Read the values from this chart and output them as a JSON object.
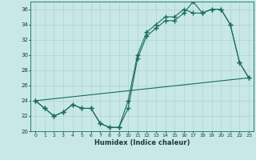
{
  "xlabel": "Humidex (Indice chaleur)",
  "bg_color": "#c8e8e8",
  "grid_color": "#b0d0d0",
  "line_color": "#1a6b5a",
  "xlim": [
    -0.5,
    23.5
  ],
  "ylim": [
    20,
    37
  ],
  "yticks": [
    20,
    22,
    24,
    26,
    28,
    30,
    32,
    34,
    36
  ],
  "xticks": [
    0,
    1,
    2,
    3,
    4,
    5,
    6,
    7,
    8,
    9,
    10,
    11,
    12,
    13,
    14,
    15,
    16,
    17,
    18,
    19,
    20,
    21,
    22,
    23
  ],
  "line1_x": [
    0,
    1,
    2,
    3,
    4,
    5,
    6,
    7,
    8,
    9,
    10,
    11,
    12,
    13,
    14,
    15,
    16,
    17,
    18,
    19,
    20,
    21,
    22,
    23
  ],
  "line1_y": [
    24.0,
    23.0,
    22.0,
    22.5,
    23.5,
    23.0,
    23.0,
    21.0,
    20.5,
    20.5,
    23.0,
    29.5,
    32.5,
    33.5,
    34.5,
    34.5,
    35.5,
    37.0,
    35.5,
    36.0,
    36.0,
    34.0,
    29.0,
    27.0
  ],
  "line2_x": [
    0,
    1,
    2,
    3,
    4,
    5,
    6,
    7,
    8,
    9,
    10,
    11,
    12,
    13,
    14,
    15,
    16,
    17,
    18,
    19,
    20,
    21,
    22,
    23
  ],
  "line2_y": [
    24.0,
    23.0,
    22.0,
    22.5,
    23.5,
    23.0,
    23.0,
    21.0,
    20.5,
    20.5,
    24.0,
    30.0,
    33.0,
    34.0,
    35.0,
    35.0,
    36.0,
    35.5,
    35.5,
    36.0,
    36.0,
    34.0,
    29.0,
    27.0
  ],
  "line3_x": [
    0,
    23
  ],
  "line3_y": [
    24.0,
    27.0
  ]
}
